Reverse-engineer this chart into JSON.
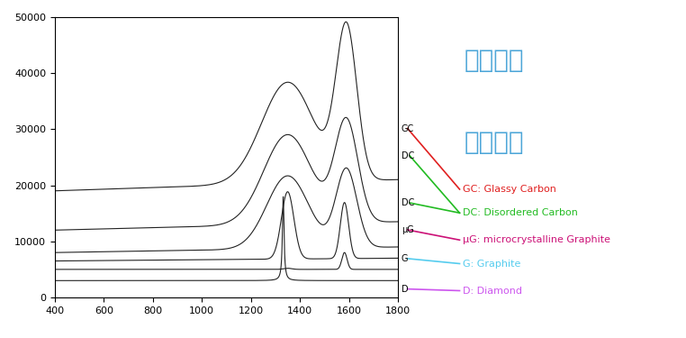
{
  "title1": "同样元素",
  "title2": "不同结构",
  "title_color": "#4da6d8",
  "xmin": 400,
  "xmax": 1800,
  "ymin": 0,
  "ymax": 50000,
  "yticks": [
    0,
    10000,
    20000,
    30000,
    40000,
    50000
  ],
  "xticks": [
    400,
    600,
    800,
    1000,
    1200,
    1400,
    1600,
    1800
  ],
  "bg_color": "#ffffff",
  "curve_color": "#222222",
  "legend_labels": [
    "GC: Glassy Carbon",
    "DC: Disordered Carbon",
    "μG: microcrystalline Graphite",
    "G: Graphite",
    "D: Diamond"
  ],
  "legend_short": [
    "GC",
    "DC",
    "DC",
    "μG",
    "G",
    "D"
  ],
  "legend_colors": [
    "#e02020",
    "#22bb22",
    "#22bb22",
    "#cc1177",
    "#55ccee",
    "#cc55ee"
  ],
  "annot_color": "#4da6d8"
}
